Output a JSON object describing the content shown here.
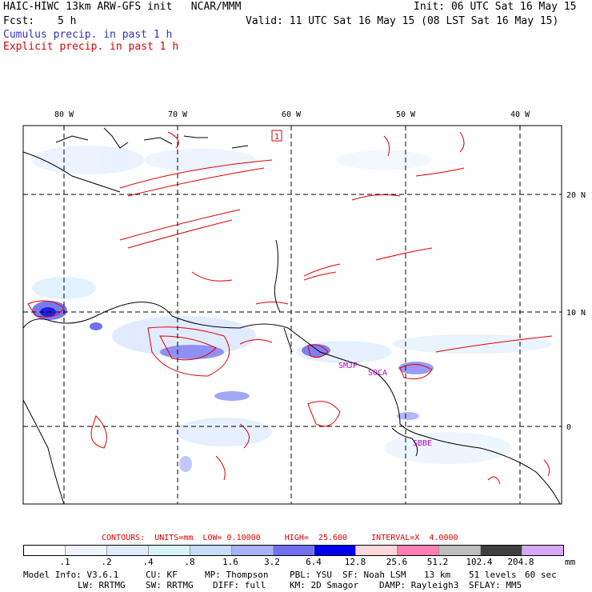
{
  "header": {
    "title": "HAIC-HIWC 13km ARW-GFS init   NCAR/MMM",
    "init": "Init: 06 UTC Sat 16 May 15",
    "fcst_label": "Fcst:",
    "fcst_value": "5 h",
    "valid": "Valid: 11 UTC Sat 16 May 15 (08 LST Sat 16 May 15)",
    "cumulus": "Cumulus precip. in past 1 h",
    "explicit": "Explicit precip. in past 1 h"
  },
  "map": {
    "lon_labels": [
      "80 W",
      "70 W",
      "60 W",
      "50 W",
      "40 W"
    ],
    "lat_labels": [
      "20 N",
      "10 N",
      "0"
    ],
    "stations": [
      "SMJP",
      "SOCA",
      "SBBE"
    ],
    "marker": "1",
    "colors": {
      "land": "#000000",
      "contour": "#e00000",
      "precip_light": "#dceeff",
      "precip_mid": "#7a7af0",
      "station": "#c000c0"
    }
  },
  "contours_line": "CONTOURS:  UNITS=mm  LOW= 0.10000     HIGH=  25.600     INTERVAL=X  4.0000",
  "colorbar": {
    "labels": [
      ".1",
      ".2",
      ".4",
      ".8",
      "1.6",
      "3.2",
      "6.4",
      "12.8",
      "25.6",
      "51.2",
      "102.4",
      "204.8"
    ],
    "colors": [
      "#ffffff",
      "#eef3ff",
      "#dfeaff",
      "#d6f2f8",
      "#c8dcfb",
      "#a8b0f8",
      "#7070f0",
      "#0000f0",
      "#ffd6dc",
      "#ff80b0",
      "#bdbdbd",
      "#404040",
      "#d8a8f8"
    ],
    "units": "mm"
  },
  "model_info": {
    "line1": [
      "Model Info: V3.6.1",
      "CU: KF",
      "MP: Thompson",
      "PBL: YSU",
      "SF: Noah LSM",
      "13 km",
      "51 levels",
      "60 sec"
    ],
    "line2": [
      "LW: RRTMG",
      "SW: RRTMG",
      "DIFF: full",
      "KM: 2D Smagor",
      "DAMP: Rayleigh3",
      "SFLAY: MM5"
    ]
  }
}
